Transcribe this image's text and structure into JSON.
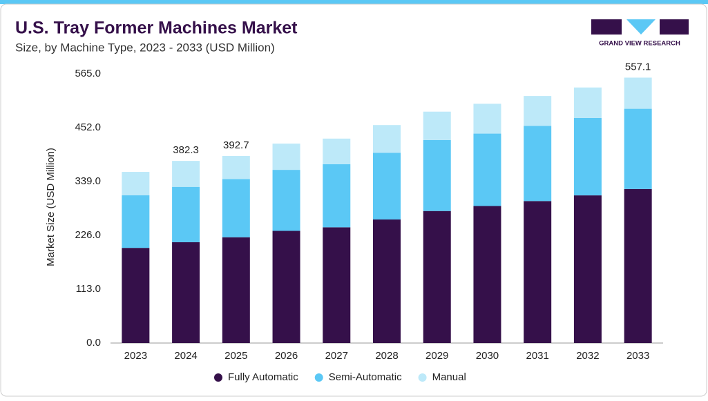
{
  "brand": "GRAND VIEW RESEARCH",
  "chart_data": {
    "type": "stacked_bar",
    "title": "U.S. Tray Former Machines Market",
    "subtitle": "Size, by Machine Type, 2023 - 2033 (USD Million)",
    "y_label": "Market Size (USD Million)",
    "categories": [
      "2023",
      "2024",
      "2025",
      "2026",
      "2027",
      "2028",
      "2029",
      "2030",
      "2031",
      "2032",
      "2033"
    ],
    "series": [
      {
        "name": "Fully Automatic",
        "color": "#35104a",
        "values": [
          199.7,
          211.6,
          222.0,
          235.4,
          242.9,
          259.3,
          277.1,
          287.6,
          298.0,
          309.9,
          323.3
        ]
      },
      {
        "name": "Semi-Automatic",
        "color": "#5bc8f5",
        "values": [
          110.3,
          116.2,
          122.2,
          128.1,
          132.6,
          140.1,
          149.0,
          152.0,
          157.9,
          162.4,
          168.4
        ]
      },
      {
        "name": "Manual",
        "color": "#bde9f9",
        "values": [
          49.2,
          54.5,
          48.5,
          55.1,
          53.6,
          58.1,
          59.6,
          62.6,
          62.6,
          64.1,
          65.4
        ]
      }
    ],
    "total_labels": [
      null,
      382.3,
      392.7,
      null,
      null,
      null,
      null,
      null,
      null,
      null,
      557.1
    ],
    "ylim": [
      0,
      565
    ],
    "yticks": [
      {
        "value": 0,
        "label": "0.0"
      },
      {
        "value": 113,
        "label": "113.0"
      },
      {
        "value": 226,
        "label": "226.0"
      },
      {
        "value": 339,
        "label": "339.0"
      },
      {
        "value": 452,
        "label": "452.0"
      },
      {
        "value": 565,
        "label": "565.0"
      }
    ],
    "legend": "bottom"
  }
}
